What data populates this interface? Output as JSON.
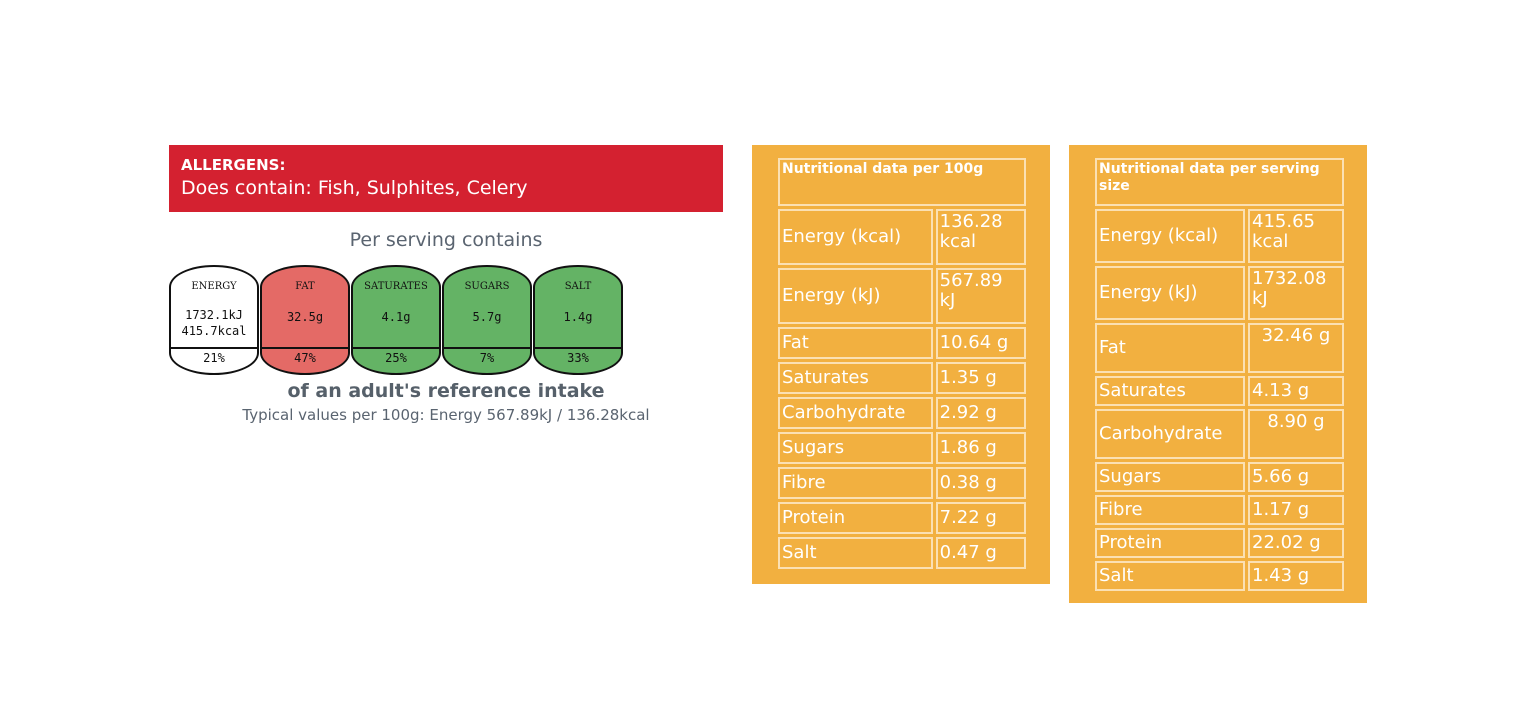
{
  "allergens": {
    "heading": "ALLERGENS:",
    "text": "Does contain: Fish, Sulphites, Celery"
  },
  "per_serving_title": "Per serving contains",
  "traffic_light": [
    {
      "label": "ENERGY",
      "value_line1": "1732.1kJ",
      "value_line2": "415.7kcal",
      "percent": "21%",
      "color": "#ffffff"
    },
    {
      "label": "FAT",
      "value_line1": "32.5g",
      "value_line2": "",
      "percent": "47%",
      "color": "#e46a66"
    },
    {
      "label": "SATURATES",
      "value_line1": "4.1g",
      "value_line2": "",
      "percent": "25%",
      "color": "#64b365"
    },
    {
      "label": "SUGARS",
      "value_line1": "5.7g",
      "value_line2": "",
      "percent": "7%",
      "color": "#64b365"
    },
    {
      "label": "SALT",
      "value_line1": "1.4g",
      "value_line2": "",
      "percent": "33%",
      "color": "#64b365"
    }
  ],
  "reference_intake": "of an adult's reference intake",
  "typical_values": "Typical values per 100g: Energy 567.89kJ / 136.28kcal",
  "per_100g": {
    "title": "Nutritional data per 100g",
    "rows": [
      {
        "name": "Energy (kcal)",
        "value": "136.28 kcal"
      },
      {
        "name": "Energy (kJ)",
        "value": "567.89 kJ"
      },
      {
        "name": "Fat",
        "value": "10.64 g"
      },
      {
        "name": "Saturates",
        "value": "1.35 g"
      },
      {
        "name": "Carbohydrate",
        "value": "2.92 g"
      },
      {
        "name": "Sugars",
        "value": "1.86 g"
      },
      {
        "name": "Fibre",
        "value": "0.38 g"
      },
      {
        "name": "Protein",
        "value": "7.22 g"
      },
      {
        "name": "Salt",
        "value": "0.47 g"
      }
    ]
  },
  "per_serving": {
    "title": "Nutritional data per serving size",
    "rows": [
      {
        "name": "Energy (kcal)",
        "value": "415.65 kcal"
      },
      {
        "name": "Energy (kJ)",
        "value": "1732.08 kJ"
      },
      {
        "name": "Fat",
        "value": "32.46 g"
      },
      {
        "name": "Saturates",
        "value": "4.13 g"
      },
      {
        "name": "Carbohydrate",
        "value": "8.90 g"
      },
      {
        "name": "Sugars",
        "value": "5.66 g"
      },
      {
        "name": "Fibre",
        "value": "1.17 g"
      },
      {
        "name": "Protein",
        "value": "22.02 g"
      },
      {
        "name": "Salt",
        "value": "1.43 g"
      }
    ]
  },
  "colors": {
    "allergen_banner": "#d42130",
    "table_background": "#f2b040",
    "table_border": "#fbe0b3"
  }
}
